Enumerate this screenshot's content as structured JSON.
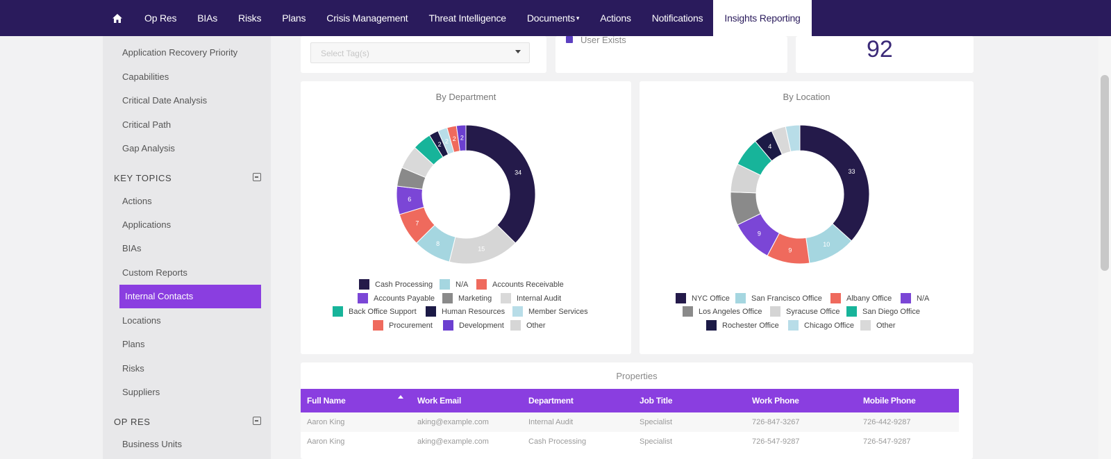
{
  "nav": {
    "items": [
      "Op Res",
      "BIAs",
      "Risks",
      "Plans",
      "Crisis Management",
      "Threat Intelligence",
      "Documents",
      "Actions",
      "Notifications",
      "Insights Reporting"
    ],
    "active": "Insights Reporting"
  },
  "sidebar": {
    "top_links": [
      "Application Recovery Priority",
      "Capabilities",
      "Critical Date Analysis",
      "Critical Path",
      "Gap Analysis"
    ],
    "key_topics_heading": "KEY TOPICS",
    "key_topics": [
      "Actions",
      "Applications",
      "BIAs",
      "Custom Reports",
      "Internal Contacts",
      "Locations",
      "Plans",
      "Risks",
      "Suppliers"
    ],
    "active_item": "Internal Contacts",
    "op_res_heading": "OP RES",
    "op_res_links": [
      "Business Units"
    ]
  },
  "filters": {
    "select_placeholder": "Select Tag(s)",
    "user_exists_label": "User Exists",
    "total_count": "92"
  },
  "colors": {
    "brand": "#2a1b5c",
    "accent": "#8a3ee0"
  },
  "chart_data": [
    {
      "type": "pie",
      "title": "By Department",
      "donut": true,
      "categories": [
        "Cash Processing",
        "N/A",
        "Accounts Receivable",
        "Accounts Payable",
        "Marketing",
        "Internal Audit",
        "Back Office Support",
        "Human Resources",
        "Member Services",
        "Procurement",
        "Development",
        "Other"
      ],
      "slices": [
        {
          "label": "Cash Processing",
          "value": 34,
          "color": "#241a4a"
        },
        {
          "label": "Other",
          "value": 15,
          "color": "#d6d6d6"
        },
        {
          "label": "N/A",
          "value": 8,
          "color": "#a5d6e0"
        },
        {
          "label": "Accounts Receivable",
          "value": 7,
          "color": "#ef6a5d"
        },
        {
          "label": "Accounts Payable",
          "value": 6,
          "color": "#7b46d6"
        },
        {
          "label": "Marketing",
          "value": 4,
          "color": "#8a8a8a"
        },
        {
          "label": "Internal Audit",
          "value": 5,
          "color": "#d9d9d9"
        },
        {
          "label": "Back Office Support",
          "value": 4,
          "color": "#17b49a"
        },
        {
          "label": "Human Resources",
          "value": 2,
          "color": "#1c1a46"
        },
        {
          "label": "Member Services",
          "value": 2,
          "color": "#b8dde8"
        },
        {
          "label": "Procurement",
          "value": 2,
          "color": "#ef6a5d"
        },
        {
          "label": "Development",
          "value": 2,
          "color": "#6b3fd0"
        }
      ],
      "visible_labels": [
        "34",
        "15",
        "8",
        "7",
        "6",
        "2",
        "2"
      ],
      "legend_placement": "bottom"
    },
    {
      "type": "pie",
      "title": "By Location",
      "donut": true,
      "categories": [
        "NYC Office",
        "San Francisco Office",
        "Albany Office",
        "N/A",
        "Los Angeles Office",
        "Syracuse Office",
        "San Diego Office",
        "Rochester Office",
        "Chicago Office",
        "Other"
      ],
      "slices": [
        {
          "label": "NYC Office",
          "value": 33,
          "color": "#241a4a"
        },
        {
          "label": "San Francisco Office",
          "value": 10,
          "color": "#a5d6e0"
        },
        {
          "label": "Albany Office",
          "value": 9,
          "color": "#ef6a5d"
        },
        {
          "label": "N/A",
          "value": 9,
          "color": "#7b46d6"
        },
        {
          "label": "Los Angeles Office",
          "value": 7,
          "color": "#8a8a8a"
        },
        {
          "label": "Syracuse Office",
          "value": 6,
          "color": "#d4d4d4"
        },
        {
          "label": "San Diego Office",
          "value": 6,
          "color": "#17b49a"
        },
        {
          "label": "Rochester Office",
          "value": 4,
          "color": "#1c1a46"
        },
        {
          "label": "Other",
          "value": 3,
          "color": "#d9d9d9"
        },
        {
          "label": "Chicago Office",
          "value": 3,
          "color": "#b8dde8"
        }
      ],
      "visible_labels": [
        "33",
        "10",
        "9",
        "4"
      ],
      "legend_placement": "bottom"
    }
  ],
  "properties": {
    "title": "Properties",
    "columns": [
      "Full Name",
      "Work Email",
      "Department",
      "Job Title",
      "Work Phone",
      "Mobile Phone"
    ],
    "rows": [
      [
        "Aaron King",
        "aking@example.com",
        "Internal Audit",
        "Specialist",
        "726-847-3267",
        "726-442-9287"
      ],
      [
        "Aaron King",
        "aking@example.com",
        "Cash Processing",
        "Specialist",
        "726-547-9287",
        "726-547-9287"
      ]
    ]
  }
}
